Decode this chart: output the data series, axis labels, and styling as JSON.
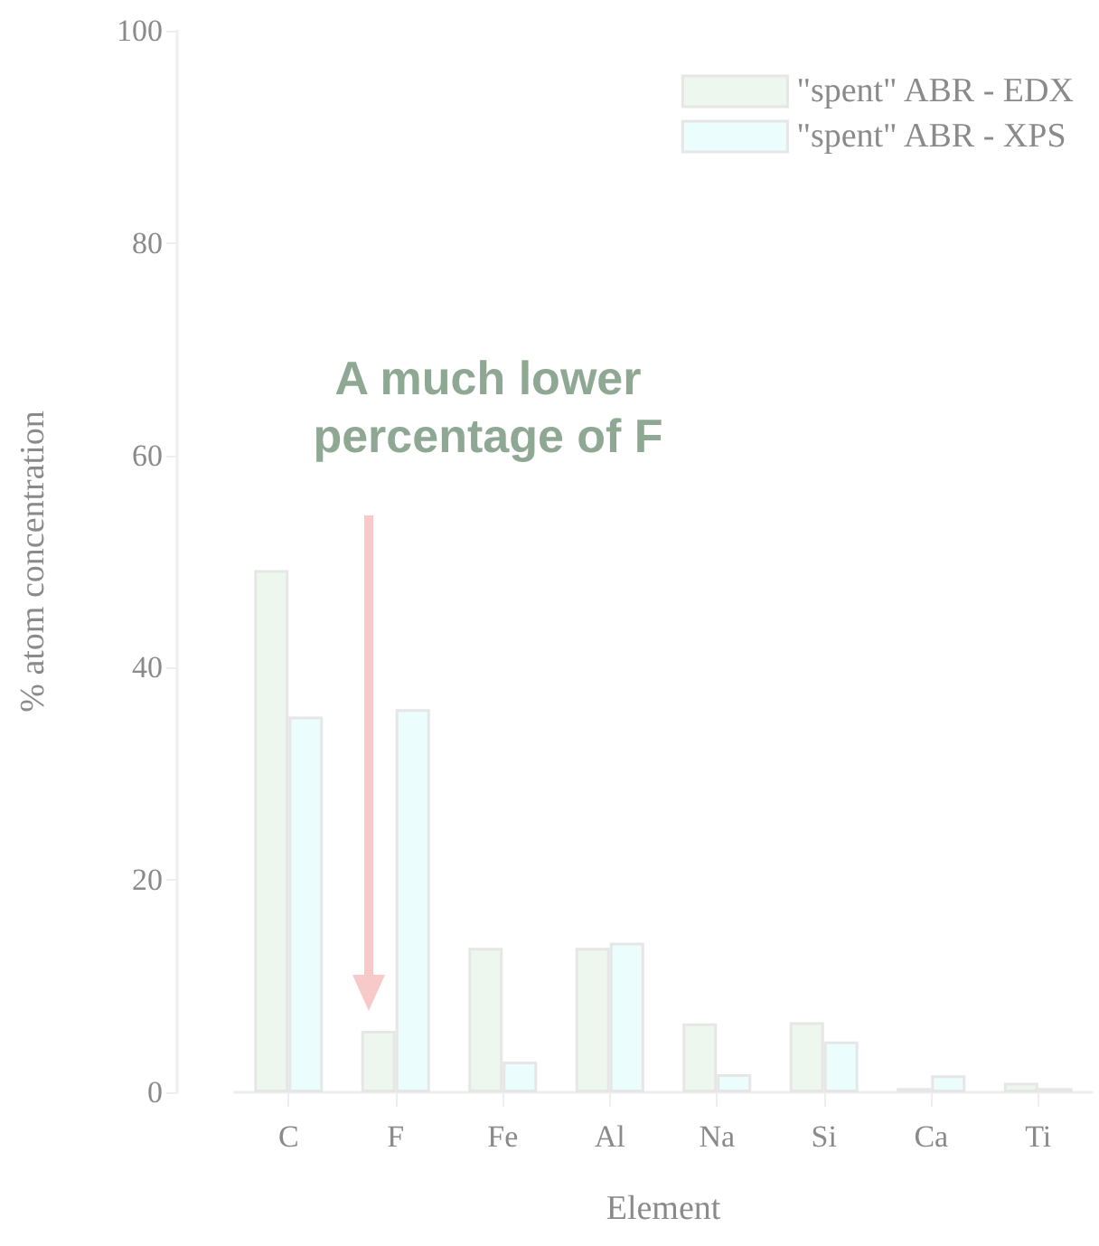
{
  "chart_data": {
    "type": "bar",
    "xlabel": "Element",
    "ylabel": "% atom concentration",
    "categories": [
      "C",
      "F",
      "Fe",
      "Al",
      "Na",
      "Si",
      "Ca",
      "Ti"
    ],
    "series": [
      {
        "name": "\"spent\" ABR - EDX",
        "color": "#eef7ed",
        "values": [
          49.2,
          5.8,
          13.6,
          13.6,
          6.5,
          6.6,
          0.4,
          0.9
        ]
      },
      {
        "name": "\"spent\" ABR - XPS",
        "color": "#ebfdfd",
        "values": [
          35.4,
          36.1,
          2.9,
          14.1,
          1.7,
          4.8,
          1.6,
          0.4
        ]
      }
    ],
    "ylim": [
      0,
      100
    ],
    "yticks": [
      0,
      20,
      40,
      60,
      80,
      100
    ],
    "grid": false,
    "legend": "top right",
    "annotations": [
      "A much lower\npercentage of F"
    ]
  }
}
